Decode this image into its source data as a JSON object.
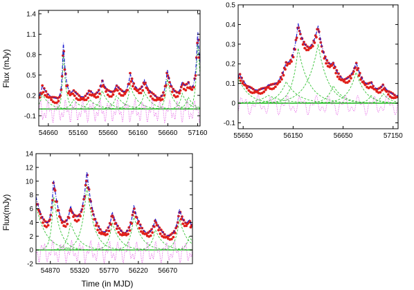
{
  "chart_data": [
    {
      "type": "line",
      "title": "",
      "xlabel": "",
      "ylabel": "Flux (mJy)",
      "xlim": [
        54500,
        57200
      ],
      "ylim": [
        -0.25,
        1.45
      ],
      "xticks": [
        54660,
        55160,
        55660,
        56160,
        56660,
        57160
      ],
      "yticks": [
        -0.1,
        0.2,
        0.5,
        0.8,
        1.1,
        1.4
      ],
      "grid": false,
      "legend": "none",
      "baseline": 0,
      "series_style": {
        "observed": {
          "color": "#e0201a",
          "mark": "points"
        },
        "total_model": {
          "color": "#1f1fd0",
          "mark": "dash-dot"
        },
        "flare_components": {
          "color": "#35c235",
          "mark": "dashed"
        },
        "residual": {
          "color": "#e040e0",
          "mark": "dotted"
        },
        "zero_line": {
          "color": "#22bb22",
          "mark": "solid"
        }
      },
      "flares": [
        {
          "t": 54560,
          "a": 0.22,
          "tr": 50,
          "td": 120
        },
        {
          "t": 54910,
          "a": 0.88,
          "tr": 22,
          "td": 45
        },
        {
          "t": 55080,
          "a": 0.14,
          "tr": 60,
          "td": 120
        },
        {
          "t": 55350,
          "a": 0.14,
          "tr": 60,
          "td": 140
        },
        {
          "t": 55560,
          "a": 0.28,
          "tr": 50,
          "td": 110
        },
        {
          "t": 55800,
          "a": 0.2,
          "tr": 60,
          "td": 140
        },
        {
          "t": 56030,
          "a": 0.35,
          "tr": 50,
          "td": 120
        },
        {
          "t": 56270,
          "a": 0.25,
          "tr": 60,
          "td": 120
        },
        {
          "t": 56650,
          "a": 0.45,
          "tr": 40,
          "td": 90
        },
        {
          "t": 56900,
          "a": 0.23,
          "tr": 50,
          "td": 100
        },
        {
          "t": 57000,
          "a": 0.18,
          "tr": 50,
          "td": 90
        },
        {
          "t": 57160,
          "a": 1.0,
          "tr": 35,
          "td": 60
        }
      ],
      "offset": 0.12
    },
    {
      "type": "line",
      "title": "",
      "xlabel": "",
      "ylabel": "",
      "xlim": [
        55600,
        57200
      ],
      "ylim": [
        -0.13,
        0.5
      ],
      "xticks": [
        55650,
        56150,
        56650,
        57150
      ],
      "yticks": [
        -0.1,
        0,
        0.1,
        0.2,
        0.3,
        0.4,
        0.5
      ],
      "grid": false,
      "legend": "none",
      "baseline": 0,
      "flares": [
        {
          "t": 55610,
          "a": 0.12,
          "tr": 40,
          "td": 100
        },
        {
          "t": 55900,
          "a": 0.04,
          "tr": 100,
          "td": 160
        },
        {
          "t": 56080,
          "a": 0.11,
          "tr": 80,
          "td": 120
        },
        {
          "t": 56200,
          "a": 0.28,
          "tr": 60,
          "td": 110
        },
        {
          "t": 56400,
          "a": 0.3,
          "tr": 110,
          "td": 100
        },
        {
          "t": 56550,
          "a": 0.09,
          "tr": 60,
          "td": 100
        },
        {
          "t": 56780,
          "a": 0.16,
          "tr": 80,
          "td": 90
        },
        {
          "t": 56930,
          "a": 0.04,
          "tr": 40,
          "td": 60
        },
        {
          "t": 57050,
          "a": 0.05,
          "tr": 40,
          "td": 70
        }
      ],
      "offset": 0.03
    },
    {
      "type": "line",
      "title": "",
      "xlabel": "Time (in MJD)",
      "ylabel": "Flux(mJy)",
      "xlim": [
        54650,
        57050
      ],
      "ylim": [
        -2,
        14
      ],
      "xticks": [
        54870,
        55320,
        55770,
        56220,
        56670
      ],
      "yticks": [
        -2,
        0,
        2,
        4,
        6,
        8,
        10,
        12,
        14
      ],
      "grid": false,
      "legend": "none",
      "baseline": 0,
      "flares": [
        {
          "t": 54640,
          "a": 7.0,
          "tr": 60,
          "td": 150
        },
        {
          "t": 54920,
          "a": 8.0,
          "tr": 40,
          "td": 100
        },
        {
          "t": 55180,
          "a": 4.0,
          "tr": 60,
          "td": 130
        },
        {
          "t": 55430,
          "a": 9.5,
          "tr": 80,
          "td": 110
        },
        {
          "t": 55820,
          "a": 4.0,
          "tr": 60,
          "td": 120
        },
        {
          "t": 56150,
          "a": 5.0,
          "tr": 60,
          "td": 120
        },
        {
          "t": 56480,
          "a": 3.0,
          "tr": 60,
          "td": 120
        },
        {
          "t": 56850,
          "a": 4.5,
          "tr": 60,
          "td": 120
        },
        {
          "t": 57000,
          "a": 2.0,
          "tr": 50,
          "td": 100
        }
      ],
      "offset": 1.2
    }
  ]
}
